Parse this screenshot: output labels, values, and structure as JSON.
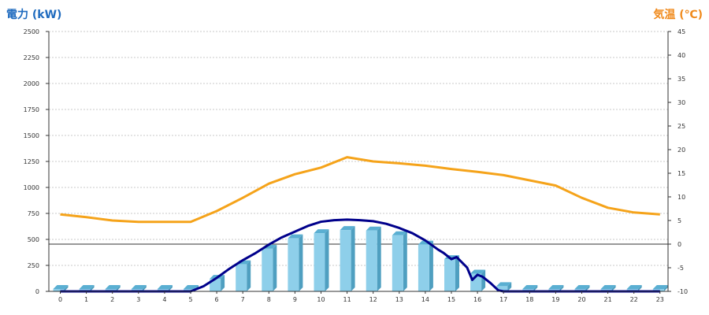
{
  "chart_data": {
    "type": "bar",
    "categories": [
      "0",
      "1",
      "2",
      "3",
      "4",
      "5",
      "6",
      "7",
      "8",
      "9",
      "10",
      "11",
      "12",
      "13",
      "14",
      "15",
      "16",
      "17",
      "18",
      "19",
      "20",
      "21",
      "22",
      "23"
    ],
    "series": [
      {
        "kind": "bar",
        "axis": "left",
        "values": [
          0,
          0,
          0,
          0,
          0,
          0,
          120,
          260,
          410,
          510,
          560,
          590,
          585,
          540,
          450,
          310,
          170,
          50,
          0,
          0,
          0,
          0,
          0,
          0
        ]
      },
      {
        "kind": "line",
        "axis": "left",
        "x": [
          0,
          1,
          2,
          3,
          4,
          5,
          5.5,
          6,
          6.5,
          7,
          7.5,
          8,
          8.5,
          9,
          9.5,
          10,
          10.5,
          11,
          11.5,
          12,
          12.5,
          13,
          13.5,
          14,
          14.5,
          14.7,
          15,
          15.2,
          15.4,
          15.6,
          15.8,
          16,
          16.2,
          16.5,
          16.8,
          17,
          18,
          19,
          20,
          21,
          22,
          23
        ],
        "values": [
          0,
          0,
          0,
          0,
          0,
          0,
          50,
          130,
          220,
          300,
          370,
          450,
          520,
          575,
          630,
          670,
          685,
          690,
          685,
          675,
          650,
          610,
          560,
          490,
          400,
          370,
          310,
          330,
          280,
          230,
          110,
          160,
          140,
          80,
          10,
          0,
          0,
          0,
          0,
          0,
          0,
          0
        ]
      },
      {
        "kind": "line",
        "axis": "right",
        "values": [
          6.3,
          5.7,
          5.0,
          4.7,
          4.7,
          4.7,
          7.0,
          9.8,
          12.8,
          14.8,
          16.2,
          18.4,
          17.5,
          17.1,
          16.6,
          15.9,
          15.3,
          14.6,
          13.5,
          12.4,
          9.8,
          7.7,
          6.7,
          6.3
        ]
      }
    ],
    "y_left": {
      "label": "電力 (kW)",
      "ylim": [
        0,
        2500
      ],
      "ticks": [
        "0",
        "250",
        "500",
        "750",
        "1000",
        "1250",
        "1500",
        "1750",
        "2000",
        "2250",
        "2500"
      ]
    },
    "y_right": {
      "label": "気温 (℃)",
      "ylim": [
        -10,
        45
      ],
      "ticks": [
        "-10",
        "-5",
        "0",
        "5",
        "10",
        "15",
        "20",
        "25",
        "30",
        "35",
        "40",
        "45"
      ]
    },
    "grid": true,
    "colors": {
      "bar_front": "#8ecfea",
      "bar_side": "#4f9fc0",
      "bar_top": "#5aafd2",
      "power_line": "#00008b",
      "temp_line": "#f5a31a",
      "left_title": "#1f6bbf",
      "right_title": "#f08a1c"
    }
  }
}
